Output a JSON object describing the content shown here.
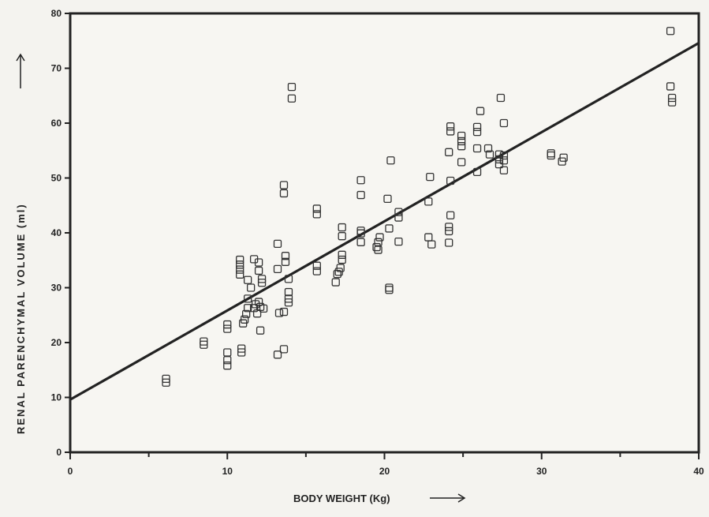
{
  "chart_data": {
    "type": "scatter",
    "title": "",
    "xlabel": "BODY WEIGHT (Kg)",
    "ylabel": "RENAL PARENCHYMAL VOLUME (ml)",
    "xlim": [
      0,
      40
    ],
    "ylim": [
      0,
      80
    ],
    "x_ticks": [
      "0",
      "10",
      "20",
      "30",
      "40"
    ],
    "y_ticks": [
      "0",
      "10",
      "20",
      "30",
      "40",
      "50",
      "60",
      "70",
      "80"
    ],
    "grid": false,
    "series": [
      {
        "marker": "open-square",
        "points": [
          [
            6.1,
            12.7
          ],
          [
            6.1,
            13.4
          ],
          [
            8.5,
            19.6
          ],
          [
            8.5,
            20.2
          ],
          [
            10,
            15.8
          ],
          [
            10,
            16.8
          ],
          [
            10,
            18.2
          ],
          [
            10,
            22.5
          ],
          [
            10,
            23.3
          ],
          [
            10.9,
            18.2
          ],
          [
            10.9,
            18.9
          ],
          [
            10.8,
            32.4
          ],
          [
            10.8,
            33.3
          ],
          [
            10.8,
            34.2
          ],
          [
            10.8,
            35.1
          ],
          [
            11.0,
            23.5
          ],
          [
            11.1,
            24.2
          ],
          [
            11.2,
            25.2
          ],
          [
            11.3,
            26.3
          ],
          [
            11.3,
            28.0
          ],
          [
            11.3,
            31.4
          ],
          [
            11.7,
            26.3
          ],
          [
            11.8,
            27.0
          ],
          [
            11.7,
            35.2
          ],
          [
            12.0,
            34.6
          ],
          [
            12.0,
            33.1
          ],
          [
            12.2,
            30.9
          ],
          [
            12.2,
            31.6
          ],
          [
            11.9,
            25.3
          ],
          [
            12.1,
            26.5
          ],
          [
            12.3,
            26.2
          ],
          [
            12.1,
            22.2
          ],
          [
            12.0,
            27.4
          ],
          [
            11.5,
            30.0
          ],
          [
            13.2,
            17.8
          ],
          [
            13.6,
            18.8
          ],
          [
            13.3,
            25.4
          ],
          [
            13.6,
            25.6
          ],
          [
            13.2,
            33.4
          ],
          [
            13.2,
            38.0
          ],
          [
            13.7,
            34.7
          ],
          [
            13.7,
            35.8
          ],
          [
            13.9,
            31.6
          ],
          [
            13.9,
            28.0
          ],
          [
            13.9,
            29.2
          ],
          [
            13.9,
            27.3
          ],
          [
            13.6,
            47.2
          ],
          [
            13.6,
            48.7
          ],
          [
            14.1,
            64.5
          ],
          [
            14.1,
            66.6
          ],
          [
            15.7,
            33.0
          ],
          [
            15.7,
            34.0
          ],
          [
            15.7,
            43.4
          ],
          [
            15.7,
            44.4
          ],
          [
            16.9,
            31.0
          ],
          [
            17.0,
            32.5
          ],
          [
            17.1,
            32.9
          ],
          [
            17.2,
            33.6
          ],
          [
            17.3,
            35.1
          ],
          [
            17.3,
            36.0
          ],
          [
            17.3,
            39.4
          ],
          [
            17.3,
            41.0
          ],
          [
            18.5,
            38.3
          ],
          [
            18.5,
            39.9
          ],
          [
            18.5,
            40.4
          ],
          [
            18.5,
            46.9
          ],
          [
            18.5,
            49.6
          ],
          [
            19.5,
            37.4
          ],
          [
            19.6,
            38.3
          ],
          [
            19.7,
            39.2
          ],
          [
            19.6,
            36.9
          ],
          [
            20.3,
            29.6
          ],
          [
            20.3,
            30.0
          ],
          [
            20.3,
            40.8
          ],
          [
            20.2,
            46.2
          ],
          [
            20.4,
            53.2
          ],
          [
            20.9,
            38.4
          ],
          [
            20.9,
            42.8
          ],
          [
            20.9,
            43.8
          ],
          [
            22.8,
            45.7
          ],
          [
            22.9,
            50.2
          ],
          [
            22.8,
            39.2
          ],
          [
            23.0,
            37.9
          ],
          [
            24.1,
            38.2
          ],
          [
            24.1,
            40.3
          ],
          [
            24.1,
            41.1
          ],
          [
            24.2,
            43.2
          ],
          [
            24.2,
            49.5
          ],
          [
            24.1,
            54.7
          ],
          [
            24.2,
            58.5
          ],
          [
            24.2,
            59.4
          ],
          [
            24.9,
            52.9
          ],
          [
            24.9,
            55.8
          ],
          [
            24.9,
            56.7
          ],
          [
            24.9,
            57.7
          ],
          [
            25.9,
            51.1
          ],
          [
            25.9,
            55.4
          ],
          [
            25.9,
            58.4
          ],
          [
            25.9,
            59.3
          ],
          [
            26.1,
            62.2
          ],
          [
            26.6,
            55.4
          ],
          [
            26.7,
            54.3
          ],
          [
            27.3,
            52.5
          ],
          [
            27.3,
            53.4
          ],
          [
            27.3,
            54.3
          ],
          [
            27.4,
            64.6
          ],
          [
            27.6,
            51.4
          ],
          [
            27.6,
            53.2
          ],
          [
            27.6,
            54.1
          ],
          [
            27.6,
            60.0
          ],
          [
            30.6,
            54.1
          ],
          [
            30.6,
            54.5
          ],
          [
            31.3,
            53.0
          ],
          [
            31.4,
            53.7
          ],
          [
            38.2,
            76.8
          ],
          [
            38.2,
            66.7
          ],
          [
            38.3,
            63.8
          ],
          [
            38.3,
            64.6
          ]
        ]
      }
    ],
    "regression_line": {
      "x": [
        0,
        40
      ],
      "y": [
        9.6,
        74.6
      ]
    }
  }
}
